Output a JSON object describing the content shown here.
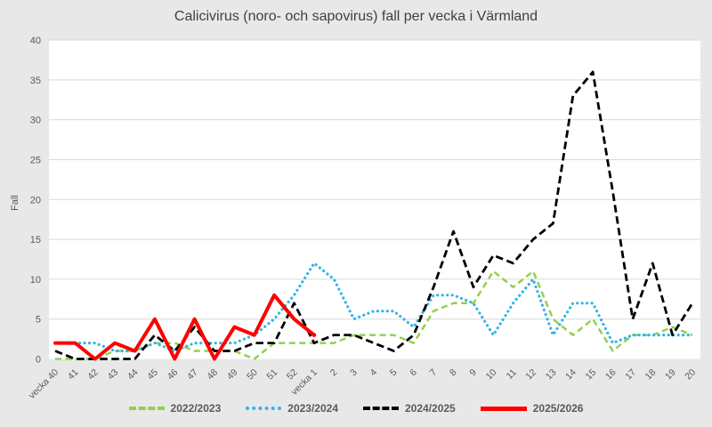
{
  "title": "Calicivirus (noro- och sapovirus) fall per vecka i Värmland",
  "y_axis": {
    "label": "Fall",
    "ticks": [
      0,
      5,
      10,
      15,
      20,
      25,
      30,
      35,
      40
    ]
  },
  "colors": {
    "background": "#e8e8e8",
    "plot_background": "#ffffff",
    "gridline": "#d9d9d9",
    "axis_text": "#595959",
    "title_text": "#404040"
  },
  "chart_data": {
    "type": "line",
    "title": "Calicivirus (noro- och sapovirus) fall per vecka i Värmland",
    "xlabel": "",
    "ylabel": "Fall",
    "ylim": [
      0,
      40
    ],
    "grid": true,
    "legend_position": "bottom",
    "categories": [
      "vecka 40",
      "41",
      "42",
      "43",
      "44",
      "45",
      "46",
      "47",
      "48",
      "49",
      "50",
      "51",
      "52",
      "vecka 1",
      "2",
      "3",
      "4",
      "5",
      "6",
      "7",
      "8",
      "9",
      "10",
      "11",
      "12",
      "13",
      "14",
      "15",
      "16",
      "17",
      "18",
      "19",
      "20"
    ],
    "series": [
      {
        "name": "2022/2023",
        "color": "#92d050",
        "style": "dashed",
        "values": [
          0,
          0,
          0,
          1,
          1,
          2,
          2,
          1,
          1,
          1,
          0,
          2,
          2,
          2,
          2,
          3,
          3,
          3,
          2,
          6,
          7,
          7,
          11,
          9,
          11,
          5,
          3,
          5,
          1,
          3,
          3,
          4,
          3
        ]
      },
      {
        "name": "2023/2024",
        "color": "#35b4e9",
        "style": "dotted",
        "values": [
          2,
          2,
          2,
          1,
          1,
          2,
          1,
          2,
          2,
          2,
          3,
          5,
          8,
          12,
          10,
          5,
          6,
          6,
          4,
          8,
          8,
          7,
          3,
          7,
          10,
          3,
          7,
          7,
          2,
          3,
          3,
          3,
          3
        ]
      },
      {
        "name": "2024/2025",
        "color": "#000000",
        "style": "dashed",
        "values": [
          1,
          0,
          0,
          0,
          0,
          3,
          1,
          4,
          1,
          1,
          2,
          2,
          7,
          2,
          3,
          3,
          2,
          1,
          3,
          9,
          16,
          9,
          13,
          12,
          15,
          17,
          33,
          36,
          21,
          5,
          12,
          3,
          7
        ]
      },
      {
        "name": "2025/2026",
        "color": "#ff0000",
        "style": "solid",
        "values": [
          2,
          2,
          0,
          2,
          1,
          5,
          0,
          5,
          0,
          4,
          3,
          8,
          5,
          3,
          null,
          null,
          null,
          null,
          null,
          null,
          null,
          null,
          null,
          null,
          null,
          null,
          null,
          null,
          null,
          null,
          null,
          null,
          null
        ]
      }
    ]
  }
}
